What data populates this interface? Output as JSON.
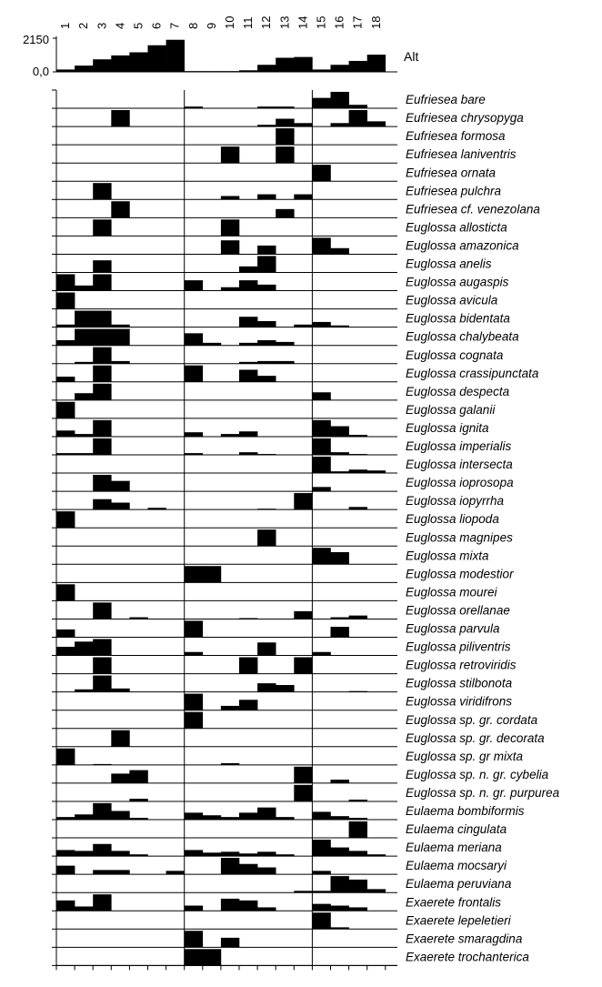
{
  "chart_data": {
    "type": "bar",
    "sites": [
      "1",
      "2",
      "3",
      "4",
      "5",
      "6",
      "7",
      "8",
      "9",
      "10",
      "11",
      "12",
      "13",
      "14",
      "15",
      "16",
      "17",
      "18"
    ],
    "altitude": {
      "label": "Alt",
      "ticks": [
        "2150",
        "0,0"
      ],
      "ylim": [
        0,
        2150
      ],
      "values": [
        150,
        400,
        800,
        1050,
        1250,
        1700,
        2050,
        50,
        50,
        50,
        100,
        450,
        900,
        950,
        150,
        450,
        700,
        1100
      ]
    },
    "rows": [
      {
        "name": "Eufriesea bare",
        "values": [
          0,
          0,
          0,
          0,
          0,
          0,
          0,
          0.1,
          0,
          0,
          0,
          0.1,
          0.1,
          0,
          0.6,
          0.95,
          0.2,
          0
        ]
      },
      {
        "name": "Eufriesea chrysopyga",
        "values": [
          0,
          0,
          0,
          0.95,
          0,
          0,
          0,
          0,
          0,
          0,
          0,
          0.1,
          0.45,
          0.2,
          0,
          0.2,
          0.95,
          0.3
        ]
      },
      {
        "name": "Eufriesea formosa",
        "values": [
          0,
          0,
          0,
          0,
          0,
          0,
          0,
          0,
          0,
          0,
          0,
          0,
          0.95,
          0,
          0,
          0,
          0,
          0
        ]
      },
      {
        "name": "Eufriesea laniventris",
        "values": [
          0,
          0,
          0,
          0,
          0,
          0,
          0,
          0,
          0,
          0.95,
          0,
          0,
          0.95,
          0,
          0,
          0,
          0,
          0
        ]
      },
      {
        "name": "Eufriesea ornata",
        "values": [
          0,
          0,
          0,
          0,
          0,
          0,
          0,
          0,
          0,
          0,
          0,
          0,
          0,
          0,
          0.95,
          0,
          0,
          0
        ]
      },
      {
        "name": "Eufriesea pulchra",
        "values": [
          0,
          0,
          0.95,
          0,
          0,
          0,
          0,
          0,
          0,
          0.2,
          0,
          0.3,
          0,
          0.3,
          0,
          0,
          0,
          0
        ]
      },
      {
        "name": "Eufriesea cf. venezolana",
        "values": [
          0,
          0,
          0,
          0.95,
          0,
          0,
          0,
          0,
          0,
          0,
          0,
          0,
          0.5,
          0,
          0,
          0,
          0,
          0
        ]
      },
      {
        "name": "Euglossa allosticta",
        "values": [
          0,
          0,
          0.95,
          0,
          0,
          0,
          0,
          0,
          0,
          0.95,
          0,
          0,
          0,
          0,
          0,
          0,
          0,
          0
        ]
      },
      {
        "name": "Euglossa amazonica",
        "values": [
          0,
          0,
          0,
          0,
          0,
          0,
          0,
          0,
          0,
          0.8,
          0,
          0.5,
          0,
          0,
          0.95,
          0.35,
          0,
          0
        ]
      },
      {
        "name": "Euglossa anelis",
        "values": [
          0,
          0,
          0.7,
          0,
          0,
          0,
          0,
          0,
          0,
          0,
          0.35,
          0.95,
          0,
          0,
          0,
          0,
          0,
          0
        ]
      },
      {
        "name": "Euglossa augaspis",
        "values": [
          0.95,
          0.3,
          0.95,
          0,
          0,
          0,
          0,
          0.6,
          0,
          0.2,
          0.6,
          0.35,
          0,
          0,
          0,
          0,
          0,
          0
        ]
      },
      {
        "name": "Euglossa avicula",
        "values": [
          0.95,
          0,
          0,
          0,
          0,
          0,
          0,
          0,
          0,
          0,
          0,
          0,
          0,
          0,
          0,
          0,
          0,
          0
        ]
      },
      {
        "name": "Euglossa bidentata",
        "values": [
          0.15,
          0.95,
          0.95,
          0.15,
          0,
          0,
          0,
          0,
          0,
          0,
          0.6,
          0.35,
          0,
          0.15,
          0.3,
          0.1,
          0,
          0
        ]
      },
      {
        "name": "Euglossa chalybeata",
        "values": [
          0.3,
          0.95,
          0.95,
          0.95,
          0,
          0,
          0,
          0.7,
          0.15,
          0,
          0.15,
          0.3,
          0.2,
          0,
          0,
          0,
          0,
          0
        ]
      },
      {
        "name": "Euglossa cognata",
        "values": [
          0,
          0.1,
          0.95,
          0.15,
          0,
          0,
          0,
          0,
          0,
          0,
          0.1,
          0.15,
          0.15,
          0,
          0,
          0,
          0,
          0
        ]
      },
      {
        "name": "Euglossa crassipunctata",
        "values": [
          0.3,
          0,
          0.95,
          0,
          0,
          0,
          0,
          0.95,
          0,
          0,
          0.7,
          0.35,
          0,
          0,
          0,
          0,
          0,
          0
        ]
      },
      {
        "name": "Euglossa despecta",
        "values": [
          0,
          0.4,
          0.95,
          0,
          0,
          0,
          0,
          0,
          0,
          0,
          0,
          0,
          0,
          0,
          0.45,
          0,
          0,
          0
        ]
      },
      {
        "name": "Euglossa galanii",
        "values": [
          0.95,
          0,
          0,
          0,
          0,
          0,
          0,
          0,
          0,
          0,
          0,
          0,
          0,
          0,
          0,
          0,
          0,
          0
        ]
      },
      {
        "name": "Euglossa ignita",
        "values": [
          0.35,
          0.15,
          0.95,
          0,
          0,
          0,
          0,
          0.25,
          0,
          0.15,
          0.3,
          0,
          0,
          0,
          0.95,
          0.6,
          0.1,
          0
        ]
      },
      {
        "name": "Euglossa imperialis",
        "values": [
          0.1,
          0.1,
          0.95,
          0,
          0,
          0,
          0,
          0.1,
          0,
          0,
          0.15,
          0.05,
          0,
          0,
          0.95,
          0.15,
          0.05,
          0
        ]
      },
      {
        "name": "Euglossa intersecta",
        "values": [
          0,
          0,
          0,
          0,
          0,
          0,
          0,
          0,
          0,
          0,
          0,
          0,
          0,
          0,
          0.95,
          0.1,
          0.2,
          0.15
        ]
      },
      {
        "name": "Euglossa ioprosopa",
        "values": [
          0,
          0,
          0.95,
          0.6,
          0,
          0,
          0,
          0,
          0,
          0,
          0,
          0,
          0,
          0,
          0.25,
          0,
          0,
          0
        ]
      },
      {
        "name": "Euglossa iopyrrha",
        "values": [
          0,
          0,
          0.6,
          0.4,
          0,
          0.1,
          0,
          0,
          0,
          0,
          0,
          0.05,
          0,
          0.95,
          0,
          0,
          0.15,
          0
        ]
      },
      {
        "name": "Euglossa liopoda",
        "values": [
          0.95,
          0,
          0,
          0,
          0,
          0,
          0,
          0,
          0,
          0,
          0,
          0,
          0,
          0,
          0,
          0,
          0,
          0
        ]
      },
      {
        "name": "Euglossa magnipes",
        "values": [
          0,
          0,
          0,
          0,
          0,
          0,
          0,
          0,
          0,
          0,
          0,
          0.95,
          0,
          0,
          0,
          0,
          0,
          0
        ]
      },
      {
        "name": "Euglossa mixta",
        "values": [
          0,
          0,
          0,
          0,
          0,
          0,
          0,
          0,
          0,
          0,
          0,
          0,
          0,
          0,
          0.95,
          0.7,
          0,
          0
        ]
      },
      {
        "name": "Euglossa modestior",
        "values": [
          0,
          0,
          0,
          0,
          0,
          0,
          0,
          0.95,
          0.95,
          0,
          0,
          0,
          0,
          0,
          0,
          0,
          0,
          0
        ]
      },
      {
        "name": "Euglossa mourei",
        "values": [
          0.95,
          0,
          0,
          0,
          0,
          0,
          0,
          0,
          0,
          0,
          0,
          0,
          0,
          0,
          0,
          0,
          0,
          0
        ]
      },
      {
        "name": "Euglossa orellanae",
        "values": [
          0,
          0,
          0.95,
          0,
          0.1,
          0,
          0,
          0,
          0,
          0,
          0.05,
          0,
          0,
          0.45,
          0,
          0.1,
          0.2,
          0
        ]
      },
      {
        "name": "Euglossa parvula",
        "values": [
          0.45,
          0,
          0,
          0,
          0,
          0,
          0,
          0.95,
          0,
          0,
          0,
          0,
          0,
          0,
          0,
          0.6,
          0,
          0
        ]
      },
      {
        "name": "Euglossa piliventris",
        "values": [
          0.5,
          0.8,
          0.95,
          0,
          0,
          0,
          0,
          0.2,
          0,
          0,
          0,
          0.75,
          0,
          0,
          0.2,
          0,
          0,
          0
        ]
      },
      {
        "name": "Euglossa retroviridis",
        "values": [
          0,
          0,
          0.95,
          0,
          0,
          0,
          0,
          0,
          0,
          0,
          0.95,
          0,
          0,
          0.95,
          0,
          0,
          0,
          0
        ]
      },
      {
        "name": "Euglossa stilbonota",
        "values": [
          0,
          0.15,
          0.95,
          0.2,
          0,
          0,
          0,
          0,
          0,
          0,
          0,
          0.5,
          0.4,
          0,
          0,
          0,
          0.05,
          0
        ]
      },
      {
        "name": "Euglossa viridifrons",
        "values": [
          0,
          0,
          0,
          0,
          0,
          0,
          0,
          0.95,
          0,
          0.25,
          0.6,
          0,
          0,
          0,
          0,
          0,
          0,
          0
        ]
      },
      {
        "name": "Euglossa sp. gr. cordata",
        "values": [
          0,
          0,
          0,
          0,
          0,
          0,
          0,
          0.95,
          0,
          0,
          0,
          0,
          0,
          0,
          0,
          0,
          0,
          0
        ]
      },
      {
        "name": "Euglossa sp. gr. decorata",
        "values": [
          0,
          0,
          0,
          0.95,
          0,
          0,
          0,
          0,
          0,
          0,
          0,
          0,
          0,
          0,
          0,
          0,
          0,
          0
        ]
      },
      {
        "name": "Euglossa sp. gr mixta",
        "values": [
          0.95,
          0,
          0.05,
          0,
          0,
          0,
          0,
          0,
          0,
          0.1,
          0,
          0,
          0,
          0,
          0,
          0,
          0,
          0
        ]
      },
      {
        "name": "Euglossa sp. n. gr. cybelia",
        "values": [
          0,
          0,
          0,
          0.55,
          0.75,
          0,
          0,
          0,
          0,
          0,
          0,
          0,
          0,
          0.95,
          0,
          0.2,
          0,
          0
        ]
      },
      {
        "name": "Euglossa sp. n. gr. purpurea",
        "values": [
          0,
          0,
          0,
          0,
          0.15,
          0,
          0,
          0,
          0,
          0,
          0,
          0,
          0,
          0.95,
          0,
          0,
          0.1,
          0
        ]
      },
      {
        "name": "Eulaema bombiformis",
        "values": [
          0.15,
          0.3,
          0.95,
          0.5,
          0.1,
          0,
          0,
          0.4,
          0.25,
          0.15,
          0.4,
          0.7,
          0.15,
          0,
          0.45,
          0.2,
          0.1,
          0
        ]
      },
      {
        "name": "Eulaema cingulata",
        "values": [
          0,
          0,
          0,
          0,
          0,
          0,
          0,
          0,
          0,
          0,
          0,
          0,
          0,
          0,
          0,
          0,
          0.95,
          0
        ]
      },
      {
        "name": "Eulaema meriana",
        "values": [
          0.35,
          0.3,
          0.7,
          0.3,
          0.1,
          0,
          0,
          0.35,
          0.2,
          0.25,
          0.15,
          0.25,
          0.1,
          0,
          0.95,
          0.5,
          0.3,
          0.1
        ]
      },
      {
        "name": "Eulaema mocsaryi",
        "values": [
          0.5,
          0,
          0.25,
          0.25,
          0,
          0,
          0.2,
          0,
          0,
          0.95,
          0.6,
          0.4,
          0,
          0,
          0.2,
          0,
          0,
          0
        ]
      },
      {
        "name": "Eulaema peruviana",
        "values": [
          0,
          0,
          0,
          0,
          0,
          0,
          0,
          0,
          0,
          0,
          0,
          0,
          0,
          0.1,
          0.1,
          0.95,
          0.75,
          0.2
        ]
      },
      {
        "name": "Exaerete frontalis",
        "values": [
          0.6,
          0.25,
          0.95,
          0,
          0,
          0,
          0,
          0.3,
          0,
          0.7,
          0.6,
          0.2,
          0,
          0,
          0.4,
          0.3,
          0.2,
          0
        ]
      },
      {
        "name": "Exaerete lepeletieri",
        "values": [
          0,
          0,
          0,
          0,
          0,
          0,
          0,
          0,
          0,
          0,
          0,
          0,
          0,
          0,
          0.95,
          0.1,
          0,
          0
        ]
      },
      {
        "name": "Exaerete smaragdina",
        "values": [
          0,
          0,
          0,
          0,
          0,
          0,
          0,
          0.95,
          0,
          0.55,
          0,
          0,
          0,
          0,
          0,
          0,
          0,
          0
        ]
      },
      {
        "name": "Exaerete trochanterica",
        "values": [
          0,
          0,
          0,
          0,
          0,
          0,
          0,
          0.95,
          0.95,
          0,
          0,
          0,
          0,
          0,
          0,
          0,
          0,
          0
        ]
      }
    ],
    "colors": {
      "bar": "#000000",
      "line": "#000000",
      "background": "#ffffff"
    }
  }
}
